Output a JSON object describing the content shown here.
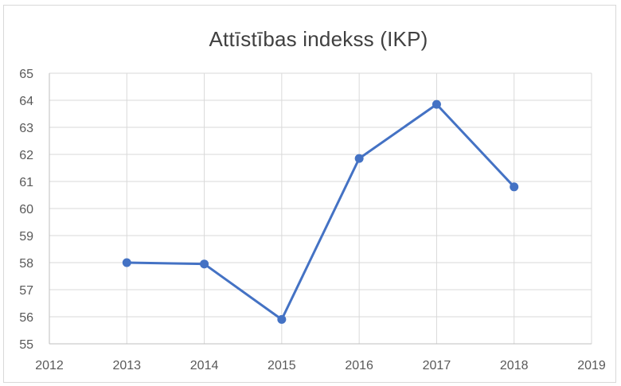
{
  "chart_data": {
    "type": "line",
    "title": "Attīstības indekss (IKP)",
    "xlabel": "",
    "ylabel": "",
    "xlim": [
      2012,
      2019
    ],
    "ylim": [
      55,
      65
    ],
    "x_ticks": [
      2012,
      2013,
      2014,
      2015,
      2016,
      2017,
      2018,
      2019
    ],
    "y_ticks": [
      55,
      56,
      57,
      58,
      59,
      60,
      61,
      62,
      63,
      64,
      65
    ],
    "grid": true,
    "legend": "none",
    "series": [
      {
        "x": [
          2013,
          2014,
          2015,
          2016,
          2017,
          2018
        ],
        "values": [
          58.0,
          57.95,
          55.9,
          61.85,
          63.85,
          60.8
        ],
        "color": "#4472c4"
      }
    ]
  }
}
